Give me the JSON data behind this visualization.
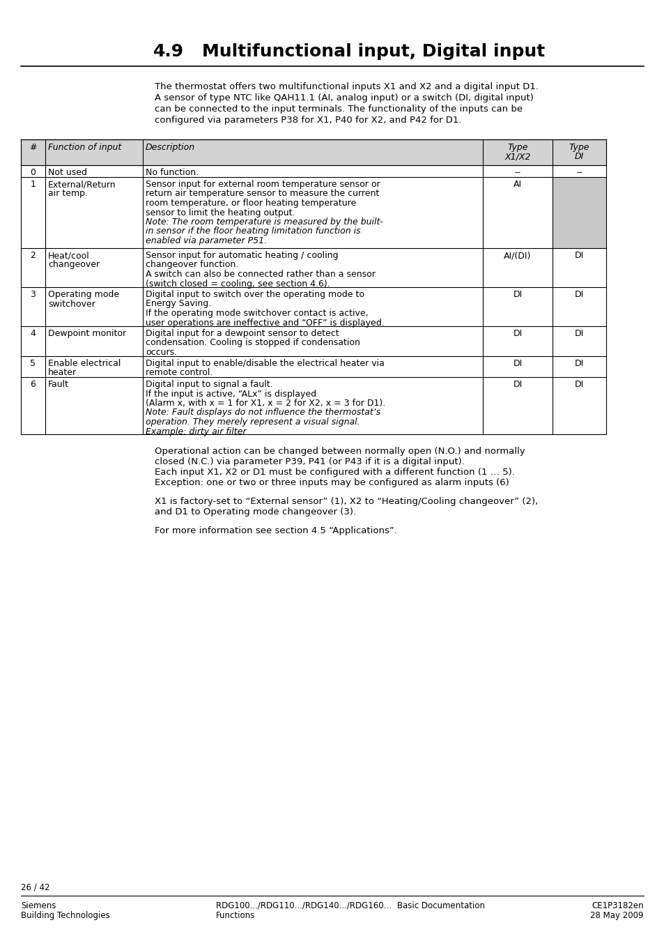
{
  "title_number": "4.9",
  "title_text": "Multifunctional input, Digital input",
  "intro_text": "The thermostat offers two multifunctional inputs X1 and X2 and a digital input D1.\nA sensor of type NTC like QAH11.1 (AI, analog input) or a switch (DI, digital input)\ncan be connected to the input terminals. The functionality of the inputs can be\nconfigured via parameters P38 for X1, P40 for X2, and P42 for D1.",
  "table_rows": [
    {
      "num": "0",
      "function": "Not used",
      "description": "No function.",
      "type_x1x2": "--",
      "type_di": "--",
      "desc_italic_lines": []
    },
    {
      "num": "1",
      "function": "External/Return\nair temp.",
      "description": "Sensor input for external room temperature sensor or\nreturn air temperature sensor to measure the current\nroom temperature, or floor heating temperature\nsensor to limit the heating output.\nNote: The room temperature is measured by the built-\nin sensor if the floor heating limitation function is\nenabled via parameter P51.",
      "type_x1x2": "AI",
      "type_di": "",
      "desc_italic_lines": [
        4,
        5,
        6
      ]
    },
    {
      "num": "2",
      "function": "Heat/cool\nchangeover",
      "description": "Sensor input for automatic heating / cooling\nchangeover function.\nA switch can also be connected rather than a sensor\n(switch closed = cooling, see section 4.6).",
      "type_x1x2": "AI/(DI)",
      "type_di": "DI",
      "desc_italic_lines": []
    },
    {
      "num": "3",
      "function": "Operating mode\nswitchover",
      "description": "Digital input to switch over the operating mode to\nEnergy Saving.\nIf the operating mode switchover contact is active,\nuser operations are ineffective and “OFF” is displayed.",
      "type_x1x2": "DI",
      "type_di": "DI",
      "desc_italic_lines": []
    },
    {
      "num": "4",
      "function": "Dewpoint monitor",
      "description": "Digital input for a dewpoint sensor to detect\ncondensation. Cooling is stopped if condensation\noccurs.",
      "type_x1x2": "DI",
      "type_di": "DI",
      "desc_italic_lines": []
    },
    {
      "num": "5",
      "function": "Enable electrical\nheater",
      "description": "Digital input to enable/disable the electrical heater via\nremote control.",
      "type_x1x2": "DI",
      "type_di": "DI",
      "desc_italic_lines": []
    },
    {
      "num": "6",
      "function": "Fault",
      "description": "Digital input to signal a fault.\nIf the input is active, “ALx” is displayed\n(Alarm x, with x = 1 for X1, x = 2 for X2, x = 3 for D1).\nNote: Fault displays do not influence the thermostat’s\noperation. They merely represent a visual signal.\nExample: dirty air filter",
      "type_x1x2": "DI",
      "type_di": "DI",
      "desc_italic_lines": [
        3,
        4,
        5
      ]
    }
  ],
  "post_table_text": "Operational action can be changed between normally open (N.O.) and normally\nclosed (N.C.) via parameter P39, P41 (or P43 if it is a digital input).\nEach input X1, X2 or D1 must be configured with a different function (1 … 5).\nException: one or two or three inputs may be configured as alarm inputs (6)",
  "post_table_text2": "X1 is factory-set to “External sensor” (1), X2 to “Heating/Cooling changeover” (2),\nand D1 to Operating mode changeover (3).",
  "post_table_text3": "For more information see section 4.5 “Applications”.",
  "footer_page": "26 / 42",
  "footer_left1": "Siemens",
  "footer_left2": "Building Technologies",
  "footer_center1": "RDG100.../RDG110.../RDG140.../RDG160…  Basic Documentation",
  "footer_center2": "Functions",
  "footer_right1": "CE1P3182en",
  "footer_right2": "28 May 2009",
  "bg_color": "#ffffff",
  "header_bg": "#d3d3d3",
  "row1_di_bg": "#c8c8c8",
  "table_border": "#000000"
}
